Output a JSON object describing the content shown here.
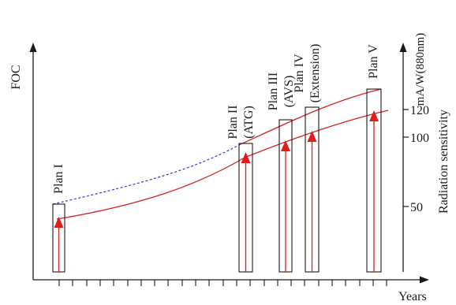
{
  "axes": {
    "y_left_label": "FOC",
    "y_right_label": "Radiation sensitivity",
    "y_right_unit": "mA/W(880nm)",
    "x_label": "Years",
    "right_ticks": [
      "50",
      "100",
      "120"
    ]
  },
  "plans": [
    {
      "name": "Plan I",
      "sub": ""
    },
    {
      "name": "Plan II",
      "sub": "(ATG)"
    },
    {
      "name": "Plan III",
      "sub": "(AVS)"
    },
    {
      "name": "Plan IV",
      "sub": "(Extension)"
    },
    {
      "name": "Plan V",
      "sub": ""
    }
  ],
  "colors": {
    "axis": "#1a1a1a",
    "upper_curve": "#d32020",
    "lower_curve": "#d32020",
    "dashed_curve": "#2b3fc4",
    "arrow": "#e21b1b",
    "box_stroke": "#1a1a1a"
  },
  "icons": {
    "plan_marker": "up-arrow-icon",
    "axis_end": "arrowhead-icon"
  }
}
